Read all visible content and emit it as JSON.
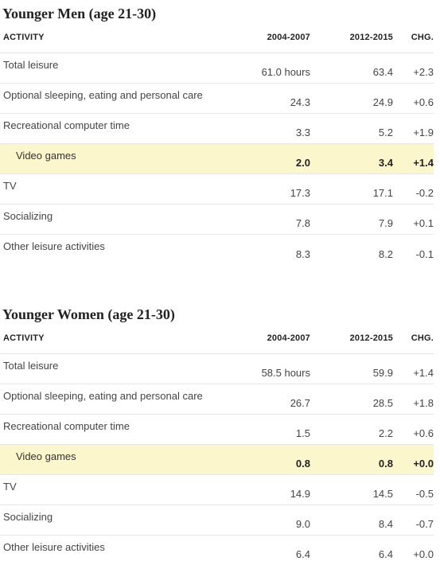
{
  "sections": [
    {
      "title": "Younger Men (age 21-30)",
      "headers": {
        "activity": "ACTIVITY",
        "period1": "2004-2007",
        "period2": "2012-2015",
        "change": "CHG."
      },
      "rows": [
        {
          "activity": "Total leisure",
          "period1": "61.0 hours",
          "period2": "63.4",
          "change": "+2.3"
        },
        {
          "activity": "Optional sleeping, eating and personal care",
          "period1": "24.3",
          "period2": "24.9",
          "change": "+0.6"
        },
        {
          "activity": "Recreational computer time",
          "period1": "3.3",
          "period2": "5.2",
          "change": "+1.9"
        },
        {
          "activity": "Video games",
          "period1": "2.0",
          "period2": "3.4",
          "change": "+1.4",
          "highlight": true
        },
        {
          "activity": "TV",
          "period1": "17.3",
          "period2": "17.1",
          "change": "-0.2"
        },
        {
          "activity": "Socializing",
          "period1": "7.8",
          "period2": "7.9",
          "change": "+0.1"
        },
        {
          "activity": "Other leisure activities",
          "period1": "8.3",
          "period2": "8.2",
          "change": "-0.1"
        }
      ]
    },
    {
      "title": "Younger Women (age 21-30)",
      "headers": {
        "activity": "ACTIVITY",
        "period1": "2004-2007",
        "period2": "2012-2015",
        "change": "CHG."
      },
      "rows": [
        {
          "activity": "Total leisure",
          "period1": "58.5 hours",
          "period2": "59.9",
          "change": "+1.4"
        },
        {
          "activity": "Optional sleeping, eating and personal care",
          "period1": "26.7",
          "period2": "28.5",
          "change": "+1.8"
        },
        {
          "activity": "Recreational computer time",
          "period1": "1.5",
          "period2": "2.2",
          "change": "+0.6"
        },
        {
          "activity": "Video games",
          "period1": "0.8",
          "period2": "0.8",
          "change": "+0.0",
          "highlight": true
        },
        {
          "activity": "TV",
          "period1": "14.9",
          "period2": "14.5",
          "change": "-0.5"
        },
        {
          "activity": "Socializing",
          "period1": "9.0",
          "period2": "8.4",
          "change": "-0.7"
        },
        {
          "activity": "Other leisure activities",
          "period1": "6.4",
          "period2": "6.4",
          "change": "+0.0"
        }
      ]
    }
  ],
  "colors": {
    "highlight": "#fcf6cd",
    "divider": "#e6e6e6",
    "title": "#222222",
    "text": "#444444"
  }
}
